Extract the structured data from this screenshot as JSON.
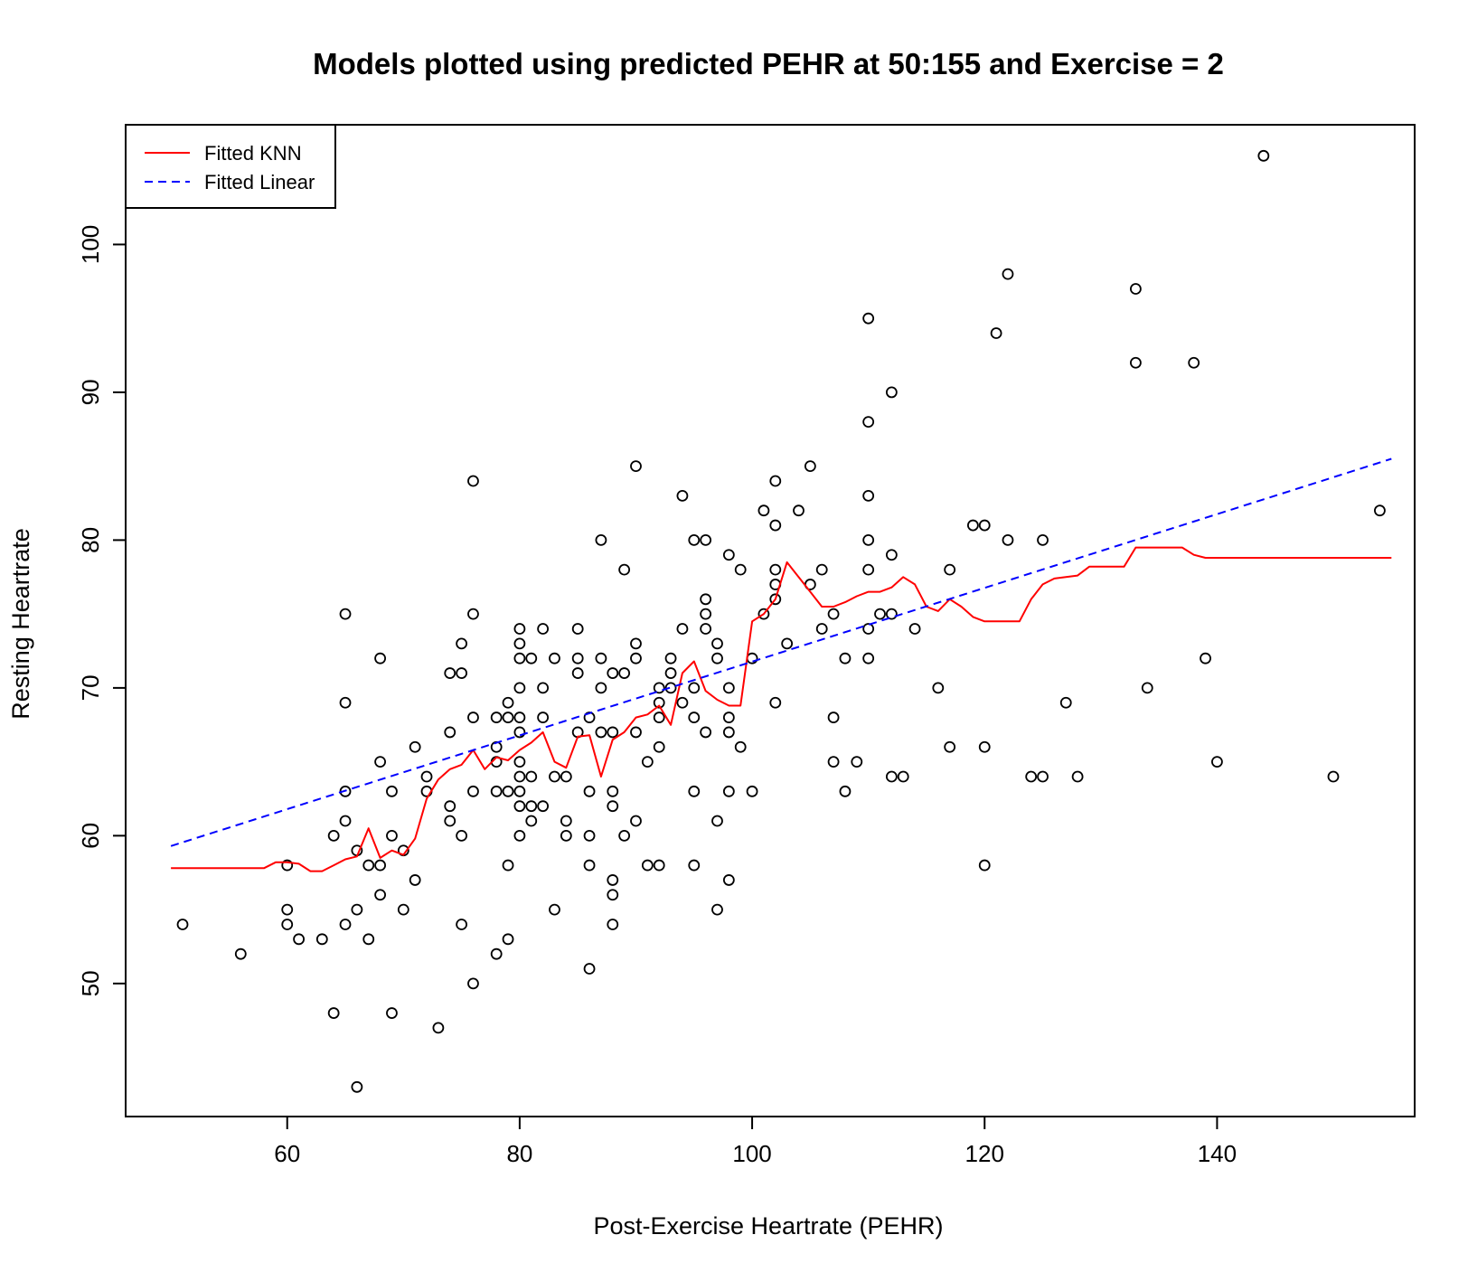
{
  "chart_data": {
    "type": "scatter",
    "title": "Models plotted using predicted PEHR at 50:155 and Exercise = 2",
    "xlabel": "Post-Exercise Heartrate (PEHR)",
    "ylabel": "Resting Heartrate",
    "xlim": [
      46.1,
      157.0
    ],
    "ylim": [
      41.0,
      108.1
    ],
    "xticks": [
      60,
      80,
      100,
      120,
      140
    ],
    "yticks": [
      50,
      60,
      70,
      80,
      90,
      100
    ],
    "grid": false,
    "legend_position": "top-left",
    "legend": [
      {
        "label": "Fitted KNN",
        "color": "#ff0000",
        "style": "solid"
      },
      {
        "label": "Fitted Linear",
        "color": "#0000ff",
        "style": "dashed"
      }
    ],
    "points": [
      [
        51,
        54
      ],
      [
        56,
        52
      ],
      [
        60,
        58
      ],
      [
        60,
        55
      ],
      [
        60,
        54
      ],
      [
        61,
        53
      ],
      [
        63,
        53
      ],
      [
        64,
        48
      ],
      [
        64,
        60
      ],
      [
        65,
        75
      ],
      [
        65,
        69
      ],
      [
        65,
        63
      ],
      [
        65,
        61
      ],
      [
        65,
        54
      ],
      [
        66,
        59
      ],
      [
        66,
        55
      ],
      [
        66,
        43
      ],
      [
        67,
        58
      ],
      [
        67,
        53
      ],
      [
        68,
        72
      ],
      [
        68,
        65
      ],
      [
        68,
        58
      ],
      [
        68,
        56
      ],
      [
        69,
        63
      ],
      [
        69,
        60
      ],
      [
        69,
        48
      ],
      [
        70,
        59
      ],
      [
        70,
        55
      ],
      [
        71,
        66
      ],
      [
        71,
        57
      ],
      [
        72,
        64
      ],
      [
        72,
        63
      ],
      [
        73,
        47
      ],
      [
        74,
        71
      ],
      [
        74,
        67
      ],
      [
        74,
        62
      ],
      [
        74,
        61
      ],
      [
        75,
        73
      ],
      [
        75,
        71
      ],
      [
        75,
        60
      ],
      [
        75,
        54
      ],
      [
        76,
        84
      ],
      [
        76,
        75
      ],
      [
        76,
        68
      ],
      [
        76,
        63
      ],
      [
        76,
        50
      ],
      [
        78,
        68
      ],
      [
        78,
        66
      ],
      [
        78,
        65
      ],
      [
        78,
        63
      ],
      [
        78,
        52
      ],
      [
        79,
        69
      ],
      [
        79,
        68
      ],
      [
        79,
        63
      ],
      [
        79,
        58
      ],
      [
        79,
        53
      ],
      [
        80,
        74
      ],
      [
        80,
        73
      ],
      [
        80,
        72
      ],
      [
        80,
        70
      ],
      [
        80,
        68
      ],
      [
        80,
        67
      ],
      [
        80,
        65
      ],
      [
        80,
        64
      ],
      [
        80,
        63
      ],
      [
        80,
        62
      ],
      [
        80,
        60
      ],
      [
        81,
        72
      ],
      [
        81,
        64
      ],
      [
        81,
        62
      ],
      [
        81,
        61
      ],
      [
        82,
        74
      ],
      [
        82,
        70
      ],
      [
        82,
        68
      ],
      [
        82,
        62
      ],
      [
        83,
        72
      ],
      [
        83,
        64
      ],
      [
        83,
        55
      ],
      [
        84,
        64
      ],
      [
        84,
        61
      ],
      [
        84,
        60
      ],
      [
        85,
        74
      ],
      [
        85,
        72
      ],
      [
        85,
        71
      ],
      [
        85,
        67
      ],
      [
        86,
        68
      ],
      [
        86,
        63
      ],
      [
        86,
        60
      ],
      [
        86,
        58
      ],
      [
        86,
        51
      ],
      [
        87,
        80
      ],
      [
        87,
        72
      ],
      [
        87,
        70
      ],
      [
        87,
        67
      ],
      [
        88,
        71
      ],
      [
        88,
        67
      ],
      [
        88,
        63
      ],
      [
        88,
        62
      ],
      [
        88,
        57
      ],
      [
        88,
        56
      ],
      [
        88,
        54
      ],
      [
        89,
        78
      ],
      [
        89,
        71
      ],
      [
        89,
        60
      ],
      [
        90,
        85
      ],
      [
        90,
        73
      ],
      [
        90,
        72
      ],
      [
        90,
        67
      ],
      [
        90,
        61
      ],
      [
        91,
        65
      ],
      [
        91,
        58
      ],
      [
        92,
        70
      ],
      [
        92,
        69
      ],
      [
        92,
        68
      ],
      [
        92,
        66
      ],
      [
        92,
        58
      ],
      [
        93,
        72
      ],
      [
        93,
        71
      ],
      [
        93,
        70
      ],
      [
        94,
        83
      ],
      [
        94,
        74
      ],
      [
        94,
        69
      ],
      [
        95,
        80
      ],
      [
        95,
        70
      ],
      [
        95,
        68
      ],
      [
        95,
        63
      ],
      [
        95,
        58
      ],
      [
        96,
        80
      ],
      [
        96,
        76
      ],
      [
        96,
        75
      ],
      [
        96,
        74
      ],
      [
        96,
        67
      ],
      [
        97,
        73
      ],
      [
        97,
        72
      ],
      [
        97,
        61
      ],
      [
        97,
        55
      ],
      [
        98,
        79
      ],
      [
        98,
        70
      ],
      [
        98,
        68
      ],
      [
        98,
        67
      ],
      [
        98,
        63
      ],
      [
        98,
        57
      ],
      [
        99,
        78
      ],
      [
        99,
        66
      ],
      [
        100,
        72
      ],
      [
        100,
        63
      ],
      [
        101,
        82
      ],
      [
        101,
        75
      ],
      [
        102,
        84
      ],
      [
        102,
        81
      ],
      [
        102,
        78
      ],
      [
        102,
        77
      ],
      [
        102,
        76
      ],
      [
        102,
        69
      ],
      [
        103,
        73
      ],
      [
        104,
        82
      ],
      [
        105,
        85
      ],
      [
        105,
        77
      ],
      [
        106,
        78
      ],
      [
        106,
        74
      ],
      [
        107,
        75
      ],
      [
        107,
        68
      ],
      [
        107,
        65
      ],
      [
        108,
        72
      ],
      [
        108,
        63
      ],
      [
        109,
        65
      ],
      [
        110,
        95
      ],
      [
        110,
        88
      ],
      [
        110,
        83
      ],
      [
        110,
        80
      ],
      [
        110,
        78
      ],
      [
        110,
        74
      ],
      [
        110,
        72
      ],
      [
        111,
        75
      ],
      [
        112,
        90
      ],
      [
        112,
        79
      ],
      [
        112,
        75
      ],
      [
        112,
        64
      ],
      [
        113,
        64
      ],
      [
        114,
        74
      ],
      [
        116,
        70
      ],
      [
        117,
        78
      ],
      [
        117,
        66
      ],
      [
        119,
        81
      ],
      [
        120,
        81
      ],
      [
        120,
        66
      ],
      [
        120,
        58
      ],
      [
        121,
        94
      ],
      [
        122,
        98
      ],
      [
        122,
        80
      ],
      [
        124,
        64
      ],
      [
        125,
        80
      ],
      [
        125,
        64
      ],
      [
        127,
        69
      ],
      [
        128,
        64
      ],
      [
        133,
        97
      ],
      [
        133,
        92
      ],
      [
        134,
        70
      ],
      [
        138,
        92
      ],
      [
        139,
        72
      ],
      [
        140,
        65
      ],
      [
        144,
        106
      ],
      [
        150,
        64
      ],
      [
        154,
        82
      ]
    ],
    "series": [
      {
        "name": "Fitted KNN",
        "color": "#ff0000",
        "style": "solid",
        "x": [
          50,
          58,
          59,
          60,
          61,
          62,
          63,
          64,
          65,
          66,
          67,
          68,
          69,
          70,
          71,
          72,
          73,
          74,
          75,
          76,
          77,
          78,
          79,
          80,
          81,
          82,
          83,
          84,
          85,
          86,
          87,
          88,
          89,
          90,
          91,
          92,
          93,
          94,
          95,
          96,
          97,
          98,
          99,
          100,
          101,
          102,
          103,
          104,
          105,
          106,
          107,
          108,
          109,
          110,
          111,
          112,
          113,
          114,
          115,
          116,
          117,
          118,
          119,
          120,
          121,
          122,
          123,
          124,
          125,
          126,
          127,
          128,
          129,
          130,
          131,
          132,
          133,
          134,
          135,
          136,
          137,
          138,
          139,
          155
        ],
        "y": [
          57.8,
          57.8,
          58.2,
          58.2,
          58.1,
          57.6,
          57.6,
          58.0,
          58.4,
          58.6,
          60.5,
          58.5,
          59.0,
          58.7,
          59.8,
          62.5,
          63.8,
          64.5,
          64.8,
          65.8,
          64.5,
          65.3,
          65.1,
          65.8,
          66.3,
          67.0,
          65.0,
          64.6,
          66.7,
          66.8,
          64.0,
          66.5,
          67.0,
          68.0,
          68.2,
          68.8,
          67.5,
          71.0,
          71.8,
          69.8,
          69.2,
          68.8,
          68.8,
          74.5,
          75.0,
          76.0,
          78.5,
          77.5,
          76.5,
          75.5,
          75.5,
          75.8,
          76.2,
          76.5,
          76.5,
          76.8,
          77.5,
          77.0,
          75.5,
          75.2,
          76.0,
          75.5,
          74.8,
          74.5,
          74.5,
          74.5,
          74.5,
          76.0,
          77.0,
          77.4,
          77.5,
          77.6,
          78.2,
          78.2,
          78.2,
          78.2,
          79.5,
          79.5,
          79.5,
          79.5,
          79.5,
          79.0,
          78.8,
          78.8
        ]
      },
      {
        "name": "Fitted Linear",
        "color": "#0000ff",
        "style": "dashed",
        "x": [
          50,
          155
        ],
        "y": [
          59.3,
          85.5
        ]
      }
    ]
  }
}
